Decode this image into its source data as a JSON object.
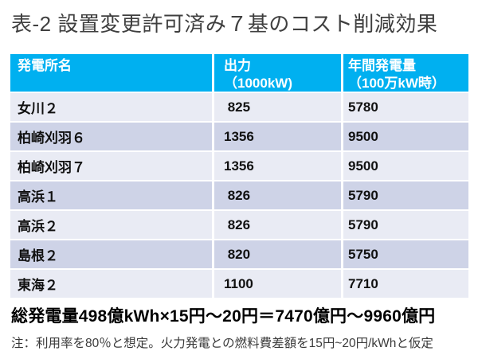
{
  "title": "表-2 設置変更許可済み７基のコスト削減効果",
  "table": {
    "columns": [
      {
        "label_line1": "発電所名",
        "label_line2": ""
      },
      {
        "label_line1": "出力",
        "label_line2": "（1000kW)"
      },
      {
        "label_line1": "年間発電量",
        "label_line2": "（100万kW時）"
      }
    ],
    "rows": [
      {
        "name": "女川２",
        "output": " 825",
        "annual": "5780"
      },
      {
        "name": "柏崎刈羽６",
        "output": "1356",
        "annual": "9500"
      },
      {
        "name": "柏崎刈羽７",
        "output": "1356",
        "annual": "9500"
      },
      {
        "name": "高浜１",
        "output": " 826",
        "annual": "5790"
      },
      {
        "name": "高浜２",
        "output": " 826",
        "annual": "5790"
      },
      {
        "name": "島根２",
        "output": " 820",
        "annual": "5750"
      },
      {
        "name": "東海２",
        "output": "1100",
        "annual": "7710"
      }
    ]
  },
  "summary": "総発電量498億kWh×15円～20円＝7470億円～9960億円",
  "note": "注：利用率を80％と想定。火力発電との燃料費差額を15円~20円/kWhと仮定",
  "colors": {
    "header_bg": "#00B0F0",
    "header_text": "#FFFFFF",
    "row_dark": "#CED3E7",
    "row_light": "#E9EBF4"
  }
}
